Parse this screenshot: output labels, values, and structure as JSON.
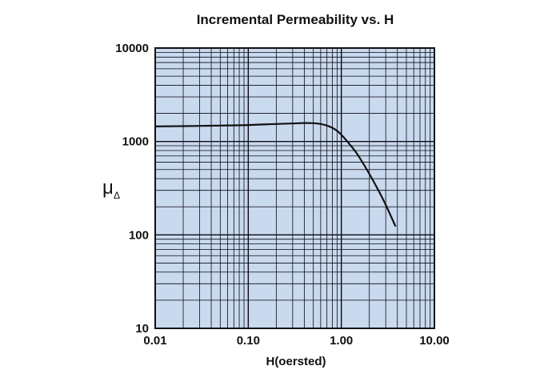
{
  "chart_data": {
    "type": "line",
    "title": "Incremental Permeability vs. H",
    "xlabel": "H(oersted)",
    "ylabel": "μ",
    "ylabel_subscript": "Δ",
    "x_scale": "log",
    "y_scale": "log",
    "xlim": [
      0.01,
      10
    ],
    "ylim": [
      10,
      10000
    ],
    "x_ticks": [
      {
        "value": 0.01,
        "label": "0.01"
      },
      {
        "value": 0.1,
        "label": "0.10"
      },
      {
        "value": 1,
        "label": "1.00"
      },
      {
        "value": 10,
        "label": "10.00"
      }
    ],
    "y_ticks": [
      {
        "value": 10,
        "label": "10"
      },
      {
        "value": 100,
        "label": "100"
      },
      {
        "value": 1000,
        "label": "1000"
      },
      {
        "value": 10000,
        "label": "10000"
      }
    ],
    "grid": true,
    "colors": {
      "plot_background": "#c9d9ee",
      "grid_line": "#0b0b14",
      "series_line": "#111111",
      "text": "#111111"
    },
    "series": [
      {
        "x": [
          0.01,
          0.02,
          0.05,
          0.1,
          0.2,
          0.3,
          0.4,
          0.5,
          0.6,
          0.7,
          0.8,
          0.9,
          1.0,
          1.2,
          1.5,
          2.0,
          2.5,
          3.0,
          3.5,
          3.8
        ],
        "y": [
          1450,
          1460,
          1480,
          1500,
          1540,
          1560,
          1575,
          1570,
          1540,
          1480,
          1400,
          1300,
          1180,
          960,
          720,
          450,
          300,
          210,
          150,
          125
        ]
      }
    ]
  }
}
